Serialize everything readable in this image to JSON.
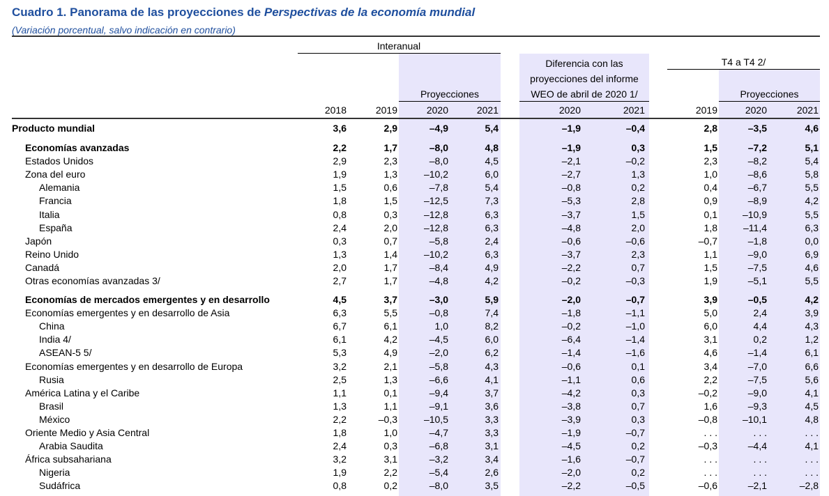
{
  "title_prefix": "Cuadro 1. Panorama de las proyecciones de ",
  "title_italic": "Perspectivas de la economía mundial",
  "subtitle": "(Variación porcentual, salvo indicación en contrario)",
  "headers": {
    "interanual": "Interanual",
    "proyecciones": "Proyecciones",
    "diferencia_lines": [
      "Diferencia con las",
      "proyecciones del informe",
      "WEO de abril de 2020 1/"
    ],
    "t4": "T4 a T4 2/",
    "t4_proyecciones": "Proyecciones",
    "years": [
      "2018",
      "2019",
      "2020",
      "2021",
      "2020",
      "2021",
      "2019",
      "2020",
      "2021"
    ]
  },
  "shading_color": "#e8e6fb",
  "title_color": "#1f4f9e",
  "rows": [
    {
      "label": "Producto mundial",
      "level": 0,
      "bold": true,
      "values": [
        "3,6",
        "2,9",
        "–4,9",
        "5,4",
        "–1,9",
        "–0,4",
        "2,8",
        "–3,5",
        "4,6"
      ]
    },
    {
      "label": "Economías avanzadas",
      "level": 1,
      "bold": true,
      "values": [
        "2,2",
        "1,7",
        "–8,0",
        "4,8",
        "–1,9",
        "0,3",
        "1,5",
        "–7,2",
        "5,1"
      ]
    },
    {
      "label": "Estados Unidos",
      "level": 1,
      "bold": false,
      "values": [
        "2,9",
        "2,3",
        "–8,0",
        "4,5",
        "–2,1",
        "–0,2",
        "2,3",
        "–8,2",
        "5,4"
      ]
    },
    {
      "label": "Zona del euro",
      "level": 1,
      "bold": false,
      "values": [
        "1,9",
        "1,3",
        "–10,2",
        "6,0",
        "–2,7",
        "1,3",
        "1,0",
        "–8,6",
        "5,8"
      ]
    },
    {
      "label": "Alemania",
      "level": 2,
      "bold": false,
      "values": [
        "1,5",
        "0,6",
        "–7,8",
        "5,4",
        "–0,8",
        "0,2",
        "0,4",
        "–6,7",
        "5,5"
      ]
    },
    {
      "label": "Francia",
      "level": 2,
      "bold": false,
      "values": [
        "1,8",
        "1,5",
        "–12,5",
        "7,3",
        "–5,3",
        "2,8",
        "0,9",
        "–8,9",
        "4,2"
      ]
    },
    {
      "label": "Italia",
      "level": 2,
      "bold": false,
      "values": [
        "0,8",
        "0,3",
        "–12,8",
        "6,3",
        "–3,7",
        "1,5",
        "0,1",
        "–10,9",
        "5,5"
      ]
    },
    {
      "label": "España",
      "level": 2,
      "bold": false,
      "values": [
        "2,4",
        "2,0",
        "–12,8",
        "6,3",
        "–4,8",
        "2,0",
        "1,8",
        "–11,4",
        "6,3"
      ]
    },
    {
      "label": "Japón",
      "level": 1,
      "bold": false,
      "values": [
        "0,3",
        "0,7",
        "–5,8",
        "2,4",
        "–0,6",
        "–0,6",
        "–0,7",
        "–1,8",
        "0,0"
      ]
    },
    {
      "label": "Reino Unido",
      "level": 1,
      "bold": false,
      "values": [
        "1,3",
        "1,4",
        "–10,2",
        "6,3",
        "–3,7",
        "2,3",
        "1,1",
        "–9,0",
        "6,9"
      ]
    },
    {
      "label": "Canadá",
      "level": 1,
      "bold": false,
      "values": [
        "2,0",
        "1,7",
        "–8,4",
        "4,9",
        "–2,2",
        "0,7",
        "1,5",
        "–7,5",
        "4,6"
      ]
    },
    {
      "label": "Otras economías avanzadas 3/",
      "level": 1,
      "bold": false,
      "values": [
        "2,7",
        "1,7",
        "–4,8",
        "4,2",
        "–0,2",
        "–0,3",
        "1,9",
        "–5,1",
        "5,5"
      ]
    },
    {
      "label": "Economías de mercados emergentes y en desarrollo",
      "level": 1,
      "bold": true,
      "values": [
        "4,5",
        "3,7",
        "–3,0",
        "5,9",
        "–2,0",
        "–0,7",
        "3,9",
        "–0,5",
        "4,2"
      ]
    },
    {
      "label": "Economías emergentes y en desarrollo de Asia",
      "level": 1,
      "bold": false,
      "values": [
        "6,3",
        "5,5",
        "–0,8",
        "7,4",
        "–1,8",
        "–1,1",
        "5,0",
        "2,4",
        "3,9"
      ]
    },
    {
      "label": "China",
      "level": 2,
      "bold": false,
      "values": [
        "6,7",
        "6,1",
        "1,0",
        "8,2",
        "–0,2",
        "–1,0",
        "6,0",
        "4,4",
        "4,3"
      ]
    },
    {
      "label": "India 4/",
      "level": 2,
      "bold": false,
      "values": [
        "6,1",
        "4,2",
        "–4,5",
        "6,0",
        "–6,4",
        "–1,4",
        "3,1",
        "0,2",
        "1,2"
      ]
    },
    {
      "label": "ASEAN-5 5/",
      "level": 2,
      "bold": false,
      "values": [
        "5,3",
        "4,9",
        "–2,0",
        "6,2",
        "–1,4",
        "–1,6",
        "4,6",
        "–1,4",
        "6,1"
      ]
    },
    {
      "label": "Economías emergentes y en desarrollo de Europa",
      "level": 1,
      "bold": false,
      "values": [
        "3,2",
        "2,1",
        "–5,8",
        "4,3",
        "–0,6",
        "0,1",
        "3,4",
        "–7,0",
        "6,6"
      ]
    },
    {
      "label": "Rusia",
      "level": 2,
      "bold": false,
      "values": [
        "2,5",
        "1,3",
        "–6,6",
        "4,1",
        "–1,1",
        "0,6",
        "2,2",
        "–7,5",
        "5,6"
      ]
    },
    {
      "label": "América Latina y el Caribe",
      "level": 1,
      "bold": false,
      "values": [
        "1,1",
        "0,1",
        "–9,4",
        "3,7",
        "–4,2",
        "0,3",
        "–0,2",
        "–9,0",
        "4,1"
      ]
    },
    {
      "label": "Brasil",
      "level": 2,
      "bold": false,
      "values": [
        "1,3",
        "1,1",
        "–9,1",
        "3,6",
        "–3,8",
        "0,7",
        "1,6",
        "–9,3",
        "4,5"
      ]
    },
    {
      "label": "México",
      "level": 2,
      "bold": false,
      "values": [
        "2,2",
        "–0,3",
        "–10,5",
        "3,3",
        "–3,9",
        "0,3",
        "–0,8",
        "–10,1",
        "4,8"
      ]
    },
    {
      "label": "Oriente Medio y Asia Central",
      "level": 1,
      "bold": false,
      "values": [
        "1,8",
        "1,0",
        "–4,7",
        "3,3",
        "–1,9",
        "–0,7",
        ". . .",
        ". . .",
        ". . ."
      ]
    },
    {
      "label": "Arabia Saudita",
      "level": 2,
      "bold": false,
      "values": [
        "2,4",
        "0,3",
        "–6,8",
        "3,1",
        "–4,5",
        "0,2",
        "–0,3",
        "–4,4",
        "4,1"
      ]
    },
    {
      "label": "África subsahariana",
      "level": 1,
      "bold": false,
      "values": [
        "3,2",
        "3,1",
        "–3,2",
        "3,4",
        "–1,6",
        "–0,7",
        ". . .",
        ". . .",
        ". . ."
      ]
    },
    {
      "label": "Nigeria",
      "level": 2,
      "bold": false,
      "values": [
        "1,9",
        "2,2",
        "–5,4",
        "2,6",
        "–2,0",
        "0,2",
        ". . .",
        ". . .",
        ". . ."
      ]
    },
    {
      "label": "Sudáfrica",
      "level": 2,
      "bold": false,
      "values": [
        "0,8",
        "0,2",
        "–8,0",
        "3,5",
        "–2,2",
        "–0,5",
        "–0,6",
        "–2,1",
        "–2,8"
      ]
    }
  ]
}
